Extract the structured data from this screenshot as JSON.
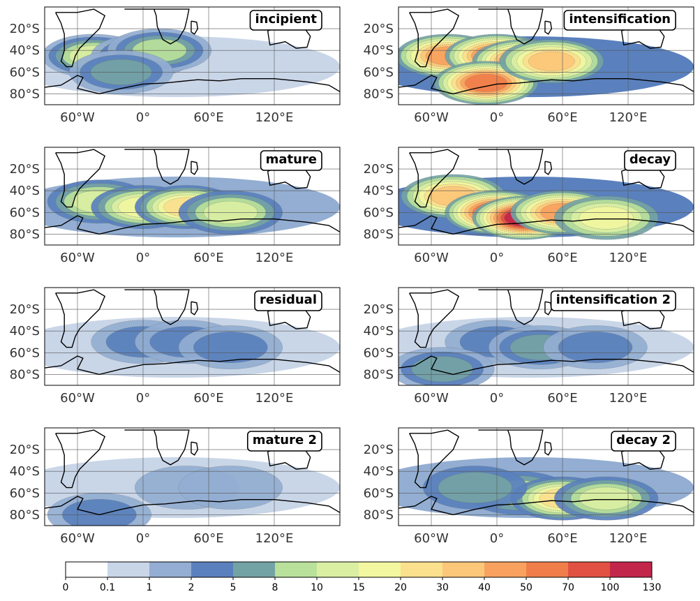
{
  "chart_data": {
    "type": "heatmap",
    "panels": [
      {
        "title": "incipient",
        "hotspots": [
          {
            "lon": -45,
            "lat": -45,
            "value": 12
          },
          {
            "lon": 0,
            "lat": -45,
            "value": 9
          },
          {
            "lon": 15,
            "lat": -40,
            "value": 8
          },
          {
            "lon": -20,
            "lat": -60,
            "value": 6
          }
        ],
        "background": 0.6
      },
      {
        "title": "intensification",
        "hotspots": [
          {
            "lon": -45,
            "lat": -45,
            "value": 45
          },
          {
            "lon": 0,
            "lat": -45,
            "value": 55
          },
          {
            "lon": 25,
            "lat": -50,
            "value": 60
          },
          {
            "lon": -10,
            "lat": -70,
            "value": 65
          },
          {
            "lon": 50,
            "lat": -50,
            "value": 30
          }
        ],
        "background": 2.5
      },
      {
        "title": "mature",
        "hotspots": [
          {
            "lon": -40,
            "lat": -50,
            "value": 14
          },
          {
            "lon": 0,
            "lat": -55,
            "value": 18
          },
          {
            "lon": 40,
            "lat": -55,
            "value": 20
          },
          {
            "lon": 80,
            "lat": -60,
            "value": 12
          }
        ],
        "background": 1.5
      },
      {
        "title": "decay",
        "hotspots": [
          {
            "lon": -40,
            "lat": -45,
            "value": 30
          },
          {
            "lon": 0,
            "lat": -60,
            "value": 70
          },
          {
            "lon": 25,
            "lat": -65,
            "value": 110
          },
          {
            "lon": 60,
            "lat": -60,
            "value": 40
          },
          {
            "lon": 100,
            "lat": -65,
            "value": 15
          }
        ],
        "background": 3
      },
      {
        "title": "residual",
        "hotspots": [
          {
            "lon": 0,
            "lat": -50,
            "value": 4
          },
          {
            "lon": 40,
            "lat": -50,
            "value": 4.5
          },
          {
            "lon": 80,
            "lat": -55,
            "value": 3
          }
        ],
        "background": 0.5
      },
      {
        "title": "intensification 2",
        "hotspots": [
          {
            "lon": 0,
            "lat": -50,
            "value": 4
          },
          {
            "lon": 40,
            "lat": -55,
            "value": 5.5
          },
          {
            "lon": 90,
            "lat": -55,
            "value": 3
          },
          {
            "lon": -50,
            "lat": -75,
            "value": 6
          }
        ],
        "background": 0.5
      },
      {
        "title": "mature 2",
        "hotspots": [
          {
            "lon": 40,
            "lat": -55,
            "value": 1.3
          },
          {
            "lon": 80,
            "lat": -55,
            "value": 1.1
          },
          {
            "lon": -40,
            "lat": -80,
            "value": 2
          }
        ],
        "background": 0.3
      },
      {
        "title": "decay 2",
        "hotspots": [
          {
            "lon": 20,
            "lat": -60,
            "value": 9
          },
          {
            "lon": 60,
            "lat": -65,
            "value": 20
          },
          {
            "lon": 100,
            "lat": -65,
            "value": 12
          },
          {
            "lon": -20,
            "lat": -55,
            "value": 5
          }
        ],
        "background": 1
      }
    ],
    "lon_ticks": [
      -60,
      0,
      60,
      120
    ],
    "lon_tick_labels": [
      "60°W",
      "0°",
      "60°E",
      "120°E"
    ],
    "lat_ticks": [
      -20,
      -40,
      -60,
      -80
    ],
    "lat_tick_labels": [
      "20°S",
      "40°S",
      "60°S",
      "80°S"
    ],
    "lon_range": [
      -90,
      180
    ],
    "lat_range": [
      -90,
      0
    ],
    "colorbar": {
      "levels": [
        0,
        0.1,
        1,
        2,
        5,
        8,
        10,
        15,
        20,
        30,
        40,
        50,
        70,
        100,
        130
      ],
      "labels": [
        "0",
        "0.1",
        "1",
        "2",
        "5",
        "8",
        "10",
        "15",
        "20",
        "30",
        "40",
        "50",
        "70",
        "100",
        "130"
      ],
      "colors": [
        "#ffffff",
        "#c9d6e8",
        "#93aed2",
        "#5a81bd",
        "#74a3a5",
        "#b9e19b",
        "#dbefa3",
        "#f3f7a0",
        "#fbe08e",
        "#fdc77a",
        "#f9a25f",
        "#f07e4b",
        "#e05143",
        "#c2264a"
      ]
    },
    "grid": true
  }
}
